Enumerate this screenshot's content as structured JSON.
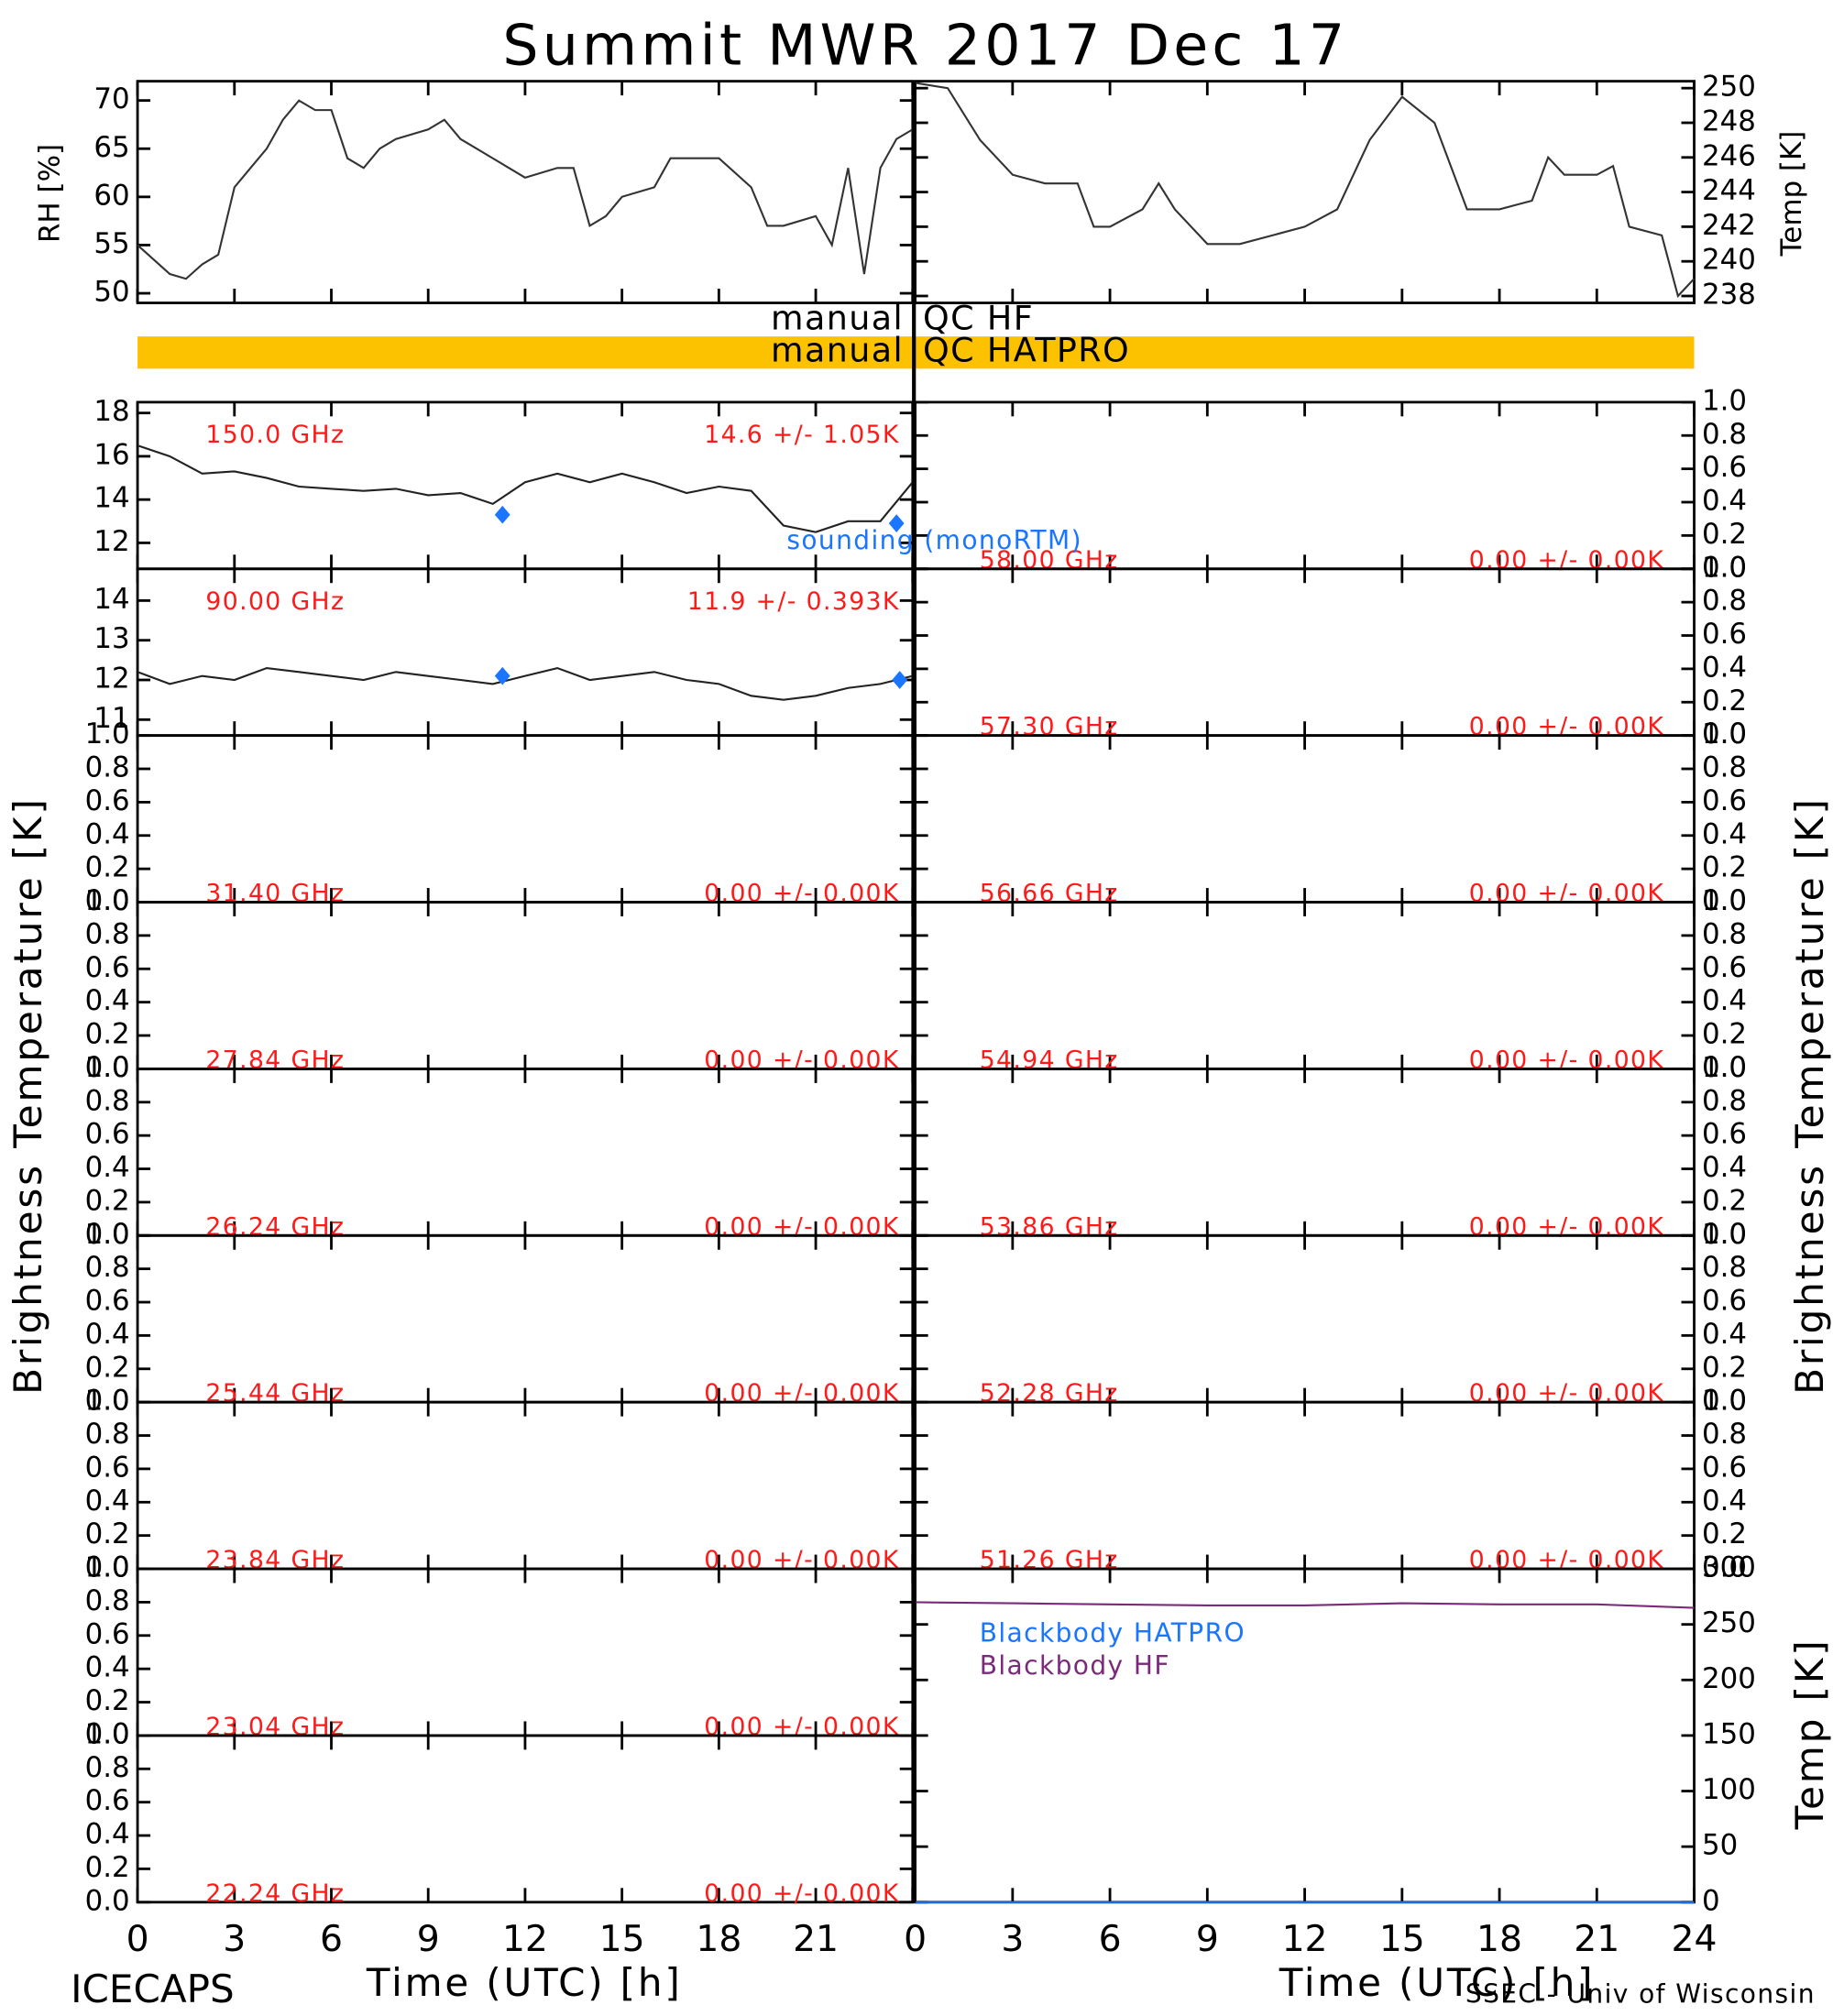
{
  "title": "Summit MWR 2017 Dec 17",
  "footer_left": "ICECAPS",
  "footer_right": "SSEC - Univ of Wisconsin",
  "time_axis": {
    "label": "Time (UTC) [h]",
    "xlim": [
      0,
      24
    ],
    "xticks": [
      0,
      3,
      6,
      9,
      12,
      15,
      18,
      21,
      24
    ]
  },
  "qc": [
    {
      "left": "manual",
      "right": "QC HF",
      "bar": false,
      "color": "#fcc200"
    },
    {
      "left": "manual",
      "right": "QC HATPRO",
      "bar": true,
      "color": "#fcc200"
    }
  ],
  "tb_label": "Brightness Temperature [K]",
  "unit_ylim": [
    0,
    1
  ],
  "unit_ticks": [
    {
      "value": 0,
      "label": "0.0"
    },
    {
      "value": 0.2,
      "label": "0.2"
    },
    {
      "value": 0.4,
      "label": "0.4"
    },
    {
      "value": 0.6,
      "label": "0.6"
    },
    {
      "value": 0.8,
      "label": "0.8"
    },
    {
      "value": 1,
      "label": "1.0"
    }
  ],
  "chart_data": [
    {
      "type": "line",
      "ylabel": "RH [%]",
      "ylim": [
        49,
        72
      ],
      "yticks": [
        50,
        55,
        60,
        65,
        70
      ],
      "color": "#333333",
      "x": [
        0,
        1,
        1.5,
        2,
        2.5,
        3,
        3.5,
        4,
        4.5,
        5,
        5.5,
        6,
        6.5,
        7,
        7.5,
        8,
        9,
        9.5,
        10,
        11,
        12,
        13,
        13.5,
        14,
        14.5,
        15,
        16,
        16.5,
        17,
        18,
        19,
        19.5,
        20,
        21,
        21.5,
        22,
        22.5,
        23,
        23.5,
        24
      ],
      "values": [
        55,
        52,
        51.5,
        53,
        54,
        61,
        63,
        65,
        68,
        70,
        69,
        69,
        64,
        63,
        65,
        66,
        67,
        68,
        66,
        64,
        62,
        63,
        63,
        57,
        58,
        60,
        61,
        64,
        64,
        64,
        61,
        57,
        57,
        58,
        55,
        63,
        52,
        63,
        66,
        67
      ]
    },
    {
      "type": "line",
      "ylabel": "Temp [K]",
      "ylim": [
        237.6,
        250.4
      ],
      "yticks": [
        238,
        240,
        242,
        244,
        246,
        248,
        250
      ],
      "color": "#333333",
      "x": [
        0,
        1,
        2,
        3,
        4,
        5,
        5.5,
        6,
        7,
        7.5,
        8,
        9,
        10,
        11,
        12,
        13,
        14,
        15,
        16,
        17,
        18,
        19,
        19.5,
        20,
        21,
        21.5,
        22,
        23,
        23.5,
        24
      ],
      "values": [
        250.3,
        250,
        247,
        245,
        244.5,
        244.5,
        242,
        242,
        243,
        244.5,
        243,
        241,
        241,
        241.5,
        242,
        243,
        247,
        249.5,
        248,
        243,
        243,
        243.5,
        246,
        245,
        245,
        245.5,
        242,
        241.5,
        238,
        239
      ]
    },
    {
      "type": "line",
      "label": "150.0 GHz",
      "stats": "14.6 +/-  1.05K",
      "ylim": [
        10.8,
        18.5
      ],
      "yticks": [
        12,
        14,
        16,
        18
      ],
      "color": "#222222",
      "x": [
        0,
        1,
        2,
        3,
        4,
        5,
        6,
        7,
        8,
        9,
        10,
        11,
        12,
        13,
        14,
        15,
        16,
        17,
        18,
        19,
        20,
        21,
        22,
        23,
        24
      ],
      "values": [
        16.5,
        16,
        15.2,
        15.3,
        15,
        14.6,
        14.5,
        14.4,
        14.5,
        14.2,
        14.3,
        13.8,
        14.8,
        15.2,
        14.8,
        15.2,
        14.8,
        14.3,
        14.6,
        14.4,
        12.8,
        12.5,
        13,
        13,
        14.8
      ],
      "sounding": {
        "name": "sounding (monoRTM)",
        "color": "#1a75ff",
        "x": [
          11.3,
          23.5
        ],
        "values": [
          13.3,
          12.9
        ]
      }
    },
    {
      "type": "line",
      "label": "90.00 GHz",
      "stats": "11.9 +/- 0.393K",
      "ylim": [
        10.6,
        14.8
      ],
      "yticks": [
        11,
        12,
        13,
        14
      ],
      "color": "#222222",
      "x": [
        0,
        1,
        2,
        3,
        4,
        5,
        6,
        7,
        8,
        9,
        10,
        11,
        12,
        13,
        14,
        15,
        16,
        17,
        18,
        19,
        20,
        21,
        22,
        23,
        24
      ],
      "values": [
        12.2,
        11.9,
        12.1,
        12.0,
        12.3,
        12.2,
        12.1,
        12.0,
        12.2,
        12.1,
        12.0,
        11.9,
        12.1,
        12.3,
        12.0,
        12.1,
        12.2,
        12.0,
        11.9,
        11.6,
        11.5,
        11.6,
        11.8,
        11.9,
        12.1
      ],
      "sounding": {
        "name": "sounding (monoRTM)",
        "color": "#1a75ff",
        "x": [
          11.3,
          23.6
        ],
        "values": [
          12.1,
          12.0
        ]
      }
    },
    {
      "type": "line",
      "label": "31.40 GHz",
      "stats": "0.00 +/- 0.00K"
    },
    {
      "type": "line",
      "label": "27.84 GHz",
      "stats": "0.00 +/- 0.00K"
    },
    {
      "type": "line",
      "label": "26.24 GHz",
      "stats": "0.00 +/- 0.00K"
    },
    {
      "type": "line",
      "label": "25.44 GHz",
      "stats": "0.00 +/- 0.00K"
    },
    {
      "type": "line",
      "label": "23.84 GHz",
      "stats": "0.00 +/- 0.00K"
    },
    {
      "type": "line",
      "label": "23.04 GHz",
      "stats": "0.00 +/- 0.00K"
    },
    {
      "type": "line",
      "label": "22.24 GHz",
      "stats": "0.00 +/- 0.00K"
    },
    {
      "type": "line",
      "label": "58.00 GHz",
      "stats": "0.00 +/- 0.00K"
    },
    {
      "type": "line",
      "label": "57.30 GHz",
      "stats": "0.00 +/- 0.00K"
    },
    {
      "type": "line",
      "label": "56.66 GHz",
      "stats": "0.00 +/- 0.00K"
    },
    {
      "type": "line",
      "label": "54.94 GHz",
      "stats": "0.00 +/- 0.00K"
    },
    {
      "type": "line",
      "label": "53.86 GHz",
      "stats": "0.00 +/- 0.00K"
    },
    {
      "type": "line",
      "label": "52.28 GHz",
      "stats": "0.00 +/- 0.00K"
    },
    {
      "type": "line",
      "label": "51.26 GHz",
      "stats": "0.00 +/- 0.00K"
    },
    {
      "type": "line",
      "ylabel": "Temp [K]",
      "ylim": [
        0,
        300
      ],
      "yticks": [
        0,
        50,
        100,
        150,
        200,
        250,
        300
      ],
      "series": [
        {
          "name": "Blackbody HATPRO",
          "color": "#1a75ff",
          "x": [
            0,
            24
          ],
          "values": [
            0,
            0
          ]
        },
        {
          "name": "Blackbody HF",
          "color": "#7b2a7b",
          "x": [
            0,
            3,
            6,
            9,
            12,
            15,
            18,
            21,
            24
          ],
          "values": [
            270,
            269,
            268,
            267,
            267,
            269,
            268,
            268,
            265
          ]
        }
      ]
    }
  ]
}
